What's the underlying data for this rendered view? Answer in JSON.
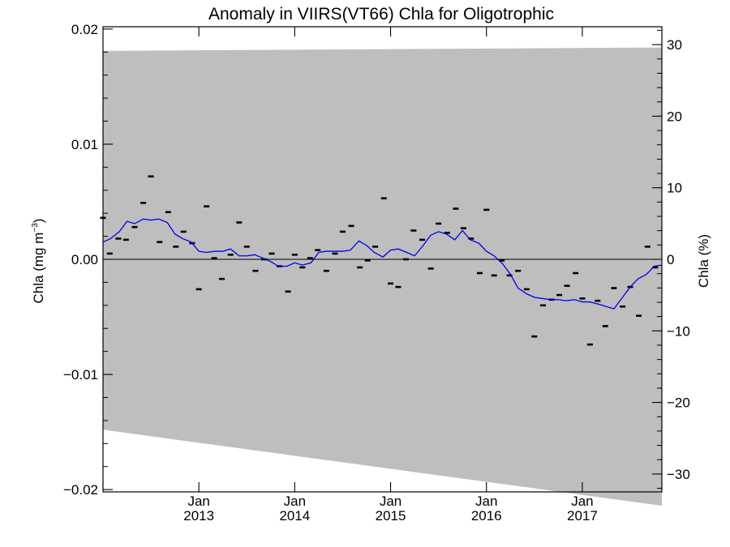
{
  "chart_data": {
    "type": "scatter",
    "title": "Anomaly in VIIRS(VT66) Chla for Oligotrophic",
    "ylabel_left": "Chla (mg m",
    "ylabel_left_sup": "−3",
    "ylabel_left_close": ")",
    "ylabel_right": "Chla (%)",
    "xlim": [
      2012.0,
      2017.83
    ],
    "ylim_left": [
      -0.0202,
      0.0202
    ],
    "ylim_right": [
      -32.5,
      32.5
    ],
    "x_ticks": [
      {
        "x": 2013.0,
        "month": "Jan",
        "year": "2013"
      },
      {
        "x": 2014.0,
        "month": "Jan",
        "year": "2014"
      },
      {
        "x": 2015.0,
        "month": "Jan",
        "year": "2015"
      },
      {
        "x": 2016.0,
        "month": "Jan",
        "year": "2016"
      },
      {
        "x": 2017.0,
        "month": "Jan",
        "year": "2017"
      }
    ],
    "y_ticks_left": [
      {
        "v": 0.02,
        "label": "0.02"
      },
      {
        "v": 0.01,
        "label": "0.01"
      },
      {
        "v": 0.0,
        "label": "0.00"
      },
      {
        "v": -0.01,
        "label": "−0.01"
      },
      {
        "v": -0.02,
        "label": "−0.02"
      }
    ],
    "y_ticks_right": [
      {
        "v": 30,
        "label": "30"
      },
      {
        "v": 20,
        "label": "20"
      },
      {
        "v": 10,
        "label": "10"
      },
      {
        "v": 0,
        "label": "0"
      },
      {
        "v": -10,
        "label": "−10"
      },
      {
        "v": -20,
        "label": "−20"
      },
      {
        "v": -30,
        "label": "−30"
      }
    ],
    "uncertainty_band": {
      "x": [
        2012.0,
        2017.83
      ],
      "upper": [
        0.0181,
        0.0184
      ],
      "lower": [
        -0.0148,
        -0.0214
      ]
    },
    "monthly_anomalies": {
      "x": [
        2012.0,
        2012.07,
        2012.16,
        2012.24,
        2012.33,
        2012.42,
        2012.5,
        2012.59,
        2012.68,
        2012.76,
        2012.84,
        2012.93,
        2013.0,
        2013.08,
        2013.16,
        2013.24,
        2013.33,
        2013.42,
        2013.5,
        2013.59,
        2013.68,
        2013.76,
        2013.84,
        2013.93,
        2014.0,
        2014.08,
        2014.16,
        2014.24,
        2014.33,
        2014.42,
        2014.5,
        2014.59,
        2014.68,
        2014.76,
        2014.84,
        2014.93,
        2015.0,
        2015.08,
        2015.16,
        2015.24,
        2015.33,
        2015.42,
        2015.5,
        2015.59,
        2015.68,
        2015.76,
        2015.84,
        2015.93,
        2016.0,
        2016.08,
        2016.16,
        2016.24,
        2016.33,
        2016.42,
        2016.5,
        2016.59,
        2016.68,
        2016.76,
        2016.84,
        2016.93,
        2017.0,
        2017.08,
        2017.16,
        2017.24,
        2017.33,
        2017.42,
        2017.5,
        2017.59,
        2017.68,
        2017.76
      ],
      "y": [
        0.0036,
        0.0005,
        0.0018,
        0.0017,
        0.0028,
        0.0049,
        0.0072,
        0.0015,
        0.0041,
        0.0011,
        0.0024,
        0.0014,
        -0.0026,
        0.0046,
        0.0001,
        -0.0017,
        0.0004,
        0.0032,
        0.0011,
        -0.001,
        0.0,
        0.0005,
        -0.0006,
        -0.0028,
        0.0004,
        -0.0007,
        0.0001,
        0.0008,
        -0.001,
        0.0005,
        0.0024,
        0.0029,
        -0.0007,
        -0.0001,
        0.0011,
        0.0053,
        -0.0021,
        -0.0024,
        0.0,
        0.0025,
        0.0017,
        -0.0008,
        0.0031,
        0.0023,
        0.0044,
        0.0027,
        0.0018,
        -0.0012,
        0.0043,
        -0.0014,
        -0.0001,
        -0.0014,
        -0.001,
        -0.0026,
        -0.0067,
        -0.004,
        -0.0035,
        -0.0031,
        -0.0023,
        -0.0012,
        -0.0034,
        -0.0074,
        -0.0036,
        -0.0058,
        -0.0025,
        -0.0041,
        -0.0024,
        -0.0049,
        0.0011,
        -0.0007
      ]
    },
    "running_mean": {
      "x": [
        2012.0,
        2012.08,
        2012.17,
        2012.25,
        2012.33,
        2012.42,
        2012.5,
        2012.58,
        2012.67,
        2012.75,
        2012.83,
        2012.92,
        2013.0,
        2013.08,
        2013.17,
        2013.25,
        2013.33,
        2013.42,
        2013.5,
        2013.58,
        2013.67,
        2013.75,
        2013.83,
        2013.92,
        2014.0,
        2014.08,
        2014.17,
        2014.25,
        2014.33,
        2014.42,
        2014.5,
        2014.58,
        2014.67,
        2014.75,
        2014.83,
        2014.92,
        2015.0,
        2015.08,
        2015.17,
        2015.25,
        2015.33,
        2015.42,
        2015.5,
        2015.58,
        2015.67,
        2015.75,
        2015.83,
        2015.92,
        2016.0,
        2016.08,
        2016.17,
        2016.25,
        2016.33,
        2016.42,
        2016.5,
        2016.58,
        2016.67,
        2016.75,
        2016.83,
        2016.92,
        2017.0,
        2017.08,
        2017.17,
        2017.25,
        2017.33,
        2017.42,
        2017.5,
        2017.58,
        2017.67,
        2017.75,
        2017.83
      ],
      "y": [
        0.0015,
        0.0018,
        0.0024,
        0.0033,
        0.0031,
        0.0035,
        0.0034,
        0.0035,
        0.0032,
        0.0022,
        0.0018,
        0.0015,
        0.0007,
        0.0006,
        0.0007,
        0.0007,
        0.0009,
        0.0003,
        0.0003,
        0.0004,
        0.0001,
        -0.0002,
        -0.0006,
        -0.0006,
        -0.0003,
        -0.0005,
        -0.0003,
        0.0006,
        0.0007,
        0.0007,
        0.0007,
        0.0008,
        0.0016,
        0.0012,
        0.0006,
        0.0002,
        0.0008,
        0.0009,
        0.0006,
        0.0003,
        0.0011,
        0.0021,
        0.0024,
        0.0022,
        0.0017,
        0.0025,
        0.0017,
        0.0014,
        0.0007,
        0.0003,
        -0.0004,
        -0.0013,
        -0.0025,
        -0.003,
        -0.0033,
        -0.0034,
        -0.0035,
        -0.0035,
        -0.0036,
        -0.0035,
        -0.0037,
        -0.0037,
        -0.0039,
        -0.0041,
        -0.0043,
        -0.0033,
        -0.0024,
        -0.0017,
        -0.0013,
        -0.0006,
        -0.0005
      ]
    },
    "zero_line": 0.0,
    "colors": {
      "band": "#bebebe",
      "running_mean": "#0000ee",
      "markers": "#000000",
      "axes": "#000000",
      "background": "#ffffff"
    },
    "grid": false,
    "legend": "none"
  }
}
